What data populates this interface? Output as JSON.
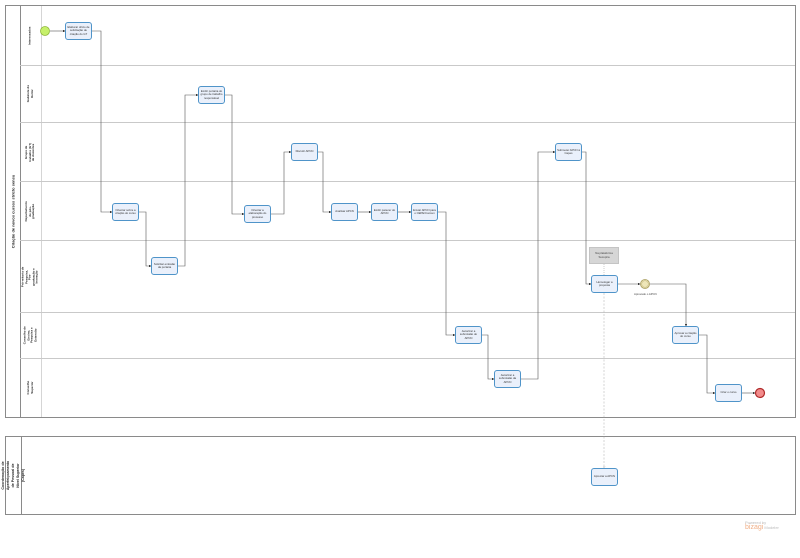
{
  "pool_main": {
    "title": "Criação de novos cursos stricto sensu",
    "lanes": [
      "Interessados",
      "Gabinete do Reitor",
      "Grupo de trabalho (GT) de docentes",
      "Departamento de pós-graduação",
      "Pró-reitoria de Pesquisa, Pós-graduação e Inovação",
      "Conselho de Ensino, Pesquisa e Extensão",
      "Conselho Superior"
    ]
  },
  "pool_capes": {
    "title": "Coordenação de Aperfeiçoamento de Pessoal de Nível Superior (Capes)"
  },
  "tasks": {
    "t1": "Elaborar ofício de solicitação de criação do GT",
    "t2": "Orientar sobre a criação do curso",
    "t3": "Solicitar emissão da portaria",
    "t4": "Emitir portaria do grupo de trabalho responsável",
    "t5": "Orientar a elaboração do processo",
    "t6": "Discutir APCN",
    "t7": "Analisar APCN",
    "t8": "Emitir parecer do APCN",
    "t9": "Enviar APCN para o CEPE/Consun",
    "t10": "Autorizar a submissão do APCN",
    "t11": "Autorizar a submissão da APCN",
    "t12": "Submeter APCN à Capes",
    "t13": "Homologar a proposta",
    "t14": "Aprovar a criação do curso",
    "t15": "Criar o curso",
    "t16": "Apreciar a APCN"
  },
  "annotation": "Na plataforma Sucupira",
  "intermediate_event_label": "Aprovado o APCN",
  "watermark": {
    "line1": "Powered by",
    "line2": "bizagi",
    "line3": "Modeler"
  },
  "colors": {
    "task_border": "#4f94c9",
    "task_fill": "#eaf0fb",
    "start": "#c6f06a",
    "end": "#f28b8b",
    "intermediate": "#eee6b8"
  }
}
